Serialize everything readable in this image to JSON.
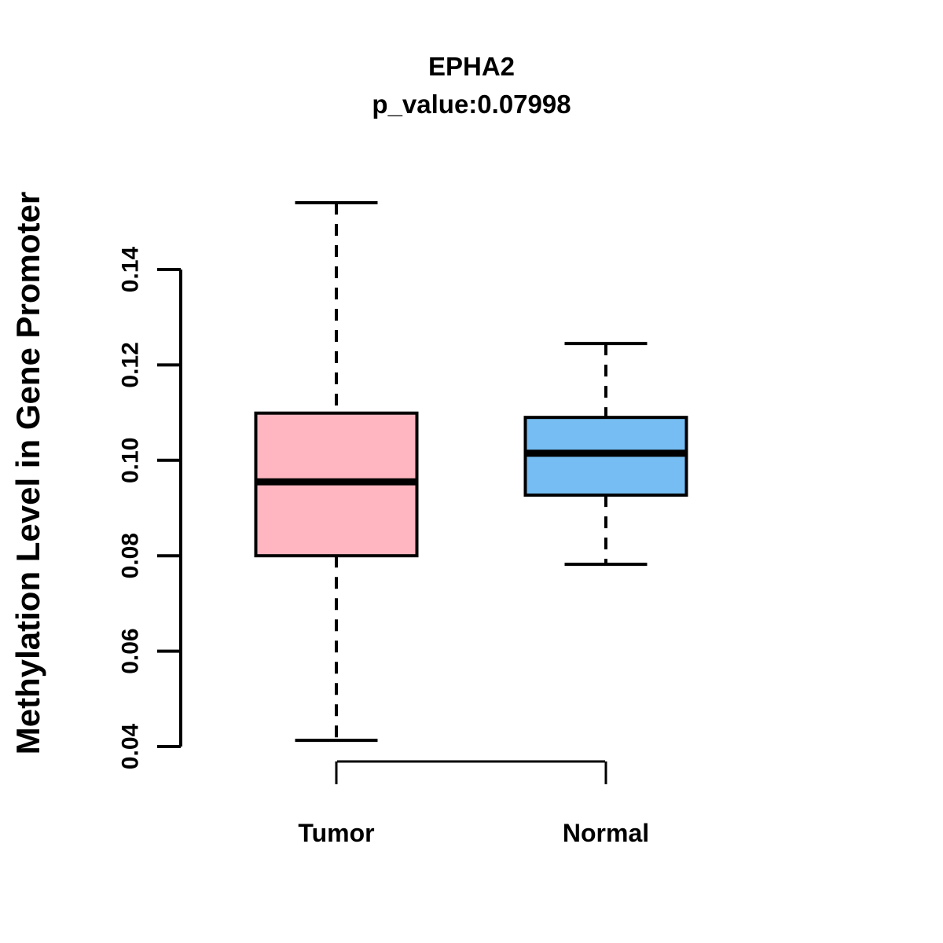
{
  "title": "EPHA2",
  "subtitle": "p_value:0.07998",
  "ylabel": "Methylation Level in Gene Promoter",
  "colors": {
    "tumor_fill": "#FFB6C1",
    "normal_fill": "#75BDF2",
    "line": "#000000",
    "background": "#FFFFFF"
  },
  "chart_data": {
    "type": "boxplot",
    "title": "EPHA2",
    "subtitle": "p_value:0.07998",
    "xlabel": "",
    "ylabel": "Methylation Level in Gene Promoter",
    "categories": [
      "Tumor",
      "Normal"
    ],
    "series": [
      {
        "name": "Tumor",
        "color": "#FFB6C1",
        "whisker_low": 0.0413,
        "q1": 0.08,
        "median": 0.0955,
        "q3": 0.1099,
        "whisker_high": 0.154
      },
      {
        "name": "Normal",
        "color": "#75BDF2",
        "whisker_low": 0.0782,
        "q1": 0.0927,
        "median": 0.1015,
        "q3": 0.109,
        "whisker_high": 0.1245
      }
    ],
    "yticks": [
      {
        "value": 0.04,
        "label": "0.04"
      },
      {
        "value": 0.06,
        "label": "0.06"
      },
      {
        "value": 0.08,
        "label": "0.08"
      },
      {
        "value": 0.1,
        "label": "0.10"
      },
      {
        "value": 0.12,
        "label": "0.12"
      },
      {
        "value": 0.14,
        "label": "0.14"
      }
    ],
    "ylim": [
      0.035,
      0.158
    ],
    "grid": false,
    "legend": "none"
  }
}
